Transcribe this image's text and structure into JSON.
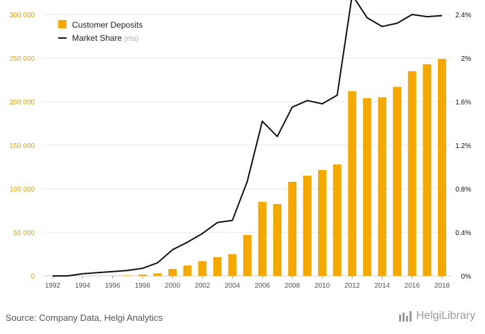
{
  "chart_data": {
    "type": "bar+line",
    "x": [
      1992,
      1993,
      1994,
      1995,
      1996,
      1997,
      1998,
      1999,
      2000,
      2001,
      2002,
      2003,
      2004,
      2005,
      2006,
      2007,
      2008,
      2009,
      2010,
      2011,
      2012,
      2013,
      2014,
      2015,
      2016,
      2017,
      2018
    ],
    "x_ticks": [
      "1992",
      "1994",
      "1996",
      "1998",
      "2000",
      "2002",
      "2004",
      "2006",
      "2008",
      "2010",
      "2012",
      "2014",
      "2016",
      "2018"
    ],
    "series": [
      {
        "name": "Customer Deposits",
        "kind": "bar",
        "axis": "left",
        "color": "#f5a800",
        "values": [
          0,
          0,
          0,
          0,
          0,
          500,
          1500,
          3000,
          8000,
          12000,
          17000,
          21500,
          25000,
          47000,
          85000,
          82500,
          108000,
          115000,
          121500,
          128000,
          212000,
          204000,
          205000,
          217000,
          235000,
          243000,
          249000
        ]
      },
      {
        "name": "Market Share",
        "name_suffix": "(rhs)",
        "kind": "line",
        "axis": "right",
        "color": "#111111",
        "values": [
          0.0,
          0.0,
          0.02,
          0.03,
          0.04,
          0.05,
          0.07,
          0.12,
          0.24,
          0.31,
          0.39,
          0.49,
          0.51,
          0.87,
          1.42,
          1.28,
          1.55,
          1.61,
          1.58,
          1.66,
          2.58,
          2.37,
          2.29,
          2.32,
          2.4,
          2.38,
          2.39
        ]
      }
    ],
    "left_axis": {
      "ylim": [
        0,
        300000
      ],
      "ticks": [
        "0",
        "50 000",
        "100 000",
        "150 000",
        "200 000",
        "250 000",
        "300 000"
      ]
    },
    "right_axis": {
      "ylim": [
        0,
        2.4
      ],
      "ticks": [
        "0%",
        "0.4%",
        "0.8%",
        "1.2%",
        "1.6%",
        "2%",
        "2.4%"
      ]
    },
    "grid": "horizontal",
    "legend": "top-left"
  },
  "footer": {
    "source": "Source: Company Data, Helgi Analytics",
    "brand": "HelgiLibrary"
  },
  "colors": {
    "bar": "#f5a800",
    "line": "#111111",
    "left_tick": "#e6a100",
    "grid": "#e6e6e6"
  }
}
